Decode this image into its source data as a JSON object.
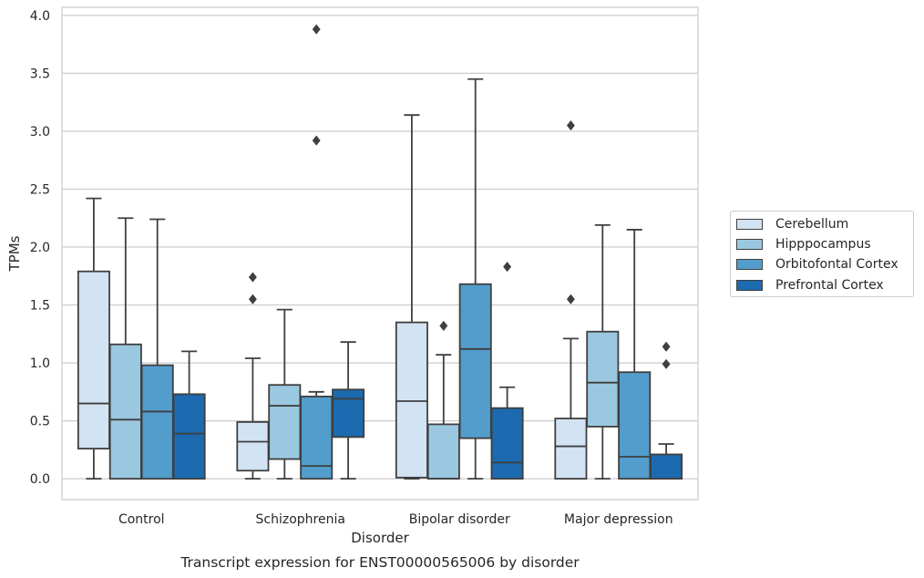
{
  "caption": "Transcript expression for ENST00000565006 by disorder",
  "chart_data": {
    "type": "box",
    "title": "",
    "xlabel": "Disorder",
    "ylabel": "TPMs",
    "ylim": [
      -0.18,
      4.07
    ],
    "yticks": [
      "0.0",
      "0.5",
      "1.0",
      "1.5",
      "2.0",
      "2.5",
      "3.0",
      "3.5",
      "4.0"
    ],
    "grid": "horizontal",
    "legend_position": "right",
    "categories": [
      "Control",
      "Schizophrenia",
      "Bipolar disorder",
      "Major depression"
    ],
    "series": [
      {
        "name": "Cerebellum",
        "color": "#d2e3f3",
        "boxes": [
          {
            "whisker_low": 0.0,
            "q1": 0.26,
            "median": 0.65,
            "q3": 1.79,
            "whisker_high": 2.42,
            "outliers": []
          },
          {
            "whisker_low": 0.0,
            "q1": 0.07,
            "median": 0.32,
            "q3": 0.49,
            "whisker_high": 1.04,
            "outliers": [
              1.55,
              1.74
            ]
          },
          {
            "whisker_low": 0.0,
            "q1": 0.01,
            "median": 0.67,
            "q3": 1.35,
            "whisker_high": 3.14,
            "outliers": []
          },
          {
            "whisker_low": 0.0,
            "q1": 0.0,
            "median": 0.28,
            "q3": 0.52,
            "whisker_high": 1.21,
            "outliers": [
              1.55,
              3.05
            ]
          }
        ]
      },
      {
        "name": "Hipppocampus",
        "color": "#9ac8e0",
        "boxes": [
          {
            "whisker_low": 0.0,
            "q1": 0.0,
            "median": 0.51,
            "q3": 1.16,
            "whisker_high": 2.25,
            "outliers": []
          },
          {
            "whisker_low": 0.0,
            "q1": 0.17,
            "median": 0.63,
            "q3": 0.81,
            "whisker_high": 1.46,
            "outliers": []
          },
          {
            "whisker_low": 0.0,
            "q1": 0.0,
            "median": 0.0,
            "q3": 0.47,
            "whisker_high": 1.07,
            "outliers": [
              1.32
            ]
          },
          {
            "whisker_low": 0.0,
            "q1": 0.45,
            "median": 0.83,
            "q3": 1.27,
            "whisker_high": 2.19,
            "outliers": []
          }
        ]
      },
      {
        "name": "Orbitofontal Cortex",
        "color": "#529dcc",
        "boxes": [
          {
            "whisker_low": 0.0,
            "q1": 0.0,
            "median": 0.58,
            "q3": 0.98,
            "whisker_high": 2.24,
            "outliers": []
          },
          {
            "whisker_low": 0.0,
            "q1": 0.0,
            "median": 0.11,
            "q3": 0.71,
            "whisker_high": 0.75,
            "outliers": [
              2.92,
              3.88
            ]
          },
          {
            "whisker_low": 0.0,
            "q1": 0.35,
            "median": 1.12,
            "q3": 1.68,
            "whisker_high": 3.45,
            "outliers": []
          },
          {
            "whisker_low": 0.0,
            "q1": 0.0,
            "median": 0.19,
            "q3": 0.92,
            "whisker_high": 2.15,
            "outliers": []
          }
        ]
      },
      {
        "name": "Prefrontal Cortex",
        "color": "#1c6aaf",
        "boxes": [
          {
            "whisker_low": 0.0,
            "q1": 0.0,
            "median": 0.39,
            "q3": 0.73,
            "whisker_high": 1.1,
            "outliers": []
          },
          {
            "whisker_low": 0.0,
            "q1": 0.36,
            "median": 0.69,
            "q3": 0.77,
            "whisker_high": 1.18,
            "outliers": []
          },
          {
            "whisker_low": 0.0,
            "q1": 0.0,
            "median": 0.14,
            "q3": 0.61,
            "whisker_high": 0.79,
            "outliers": [
              1.83
            ]
          },
          {
            "whisker_low": 0.0,
            "q1": 0.0,
            "median": 0.0,
            "q3": 0.21,
            "whisker_high": 0.3,
            "outliers": [
              0.99,
              1.14
            ]
          }
        ]
      }
    ]
  }
}
